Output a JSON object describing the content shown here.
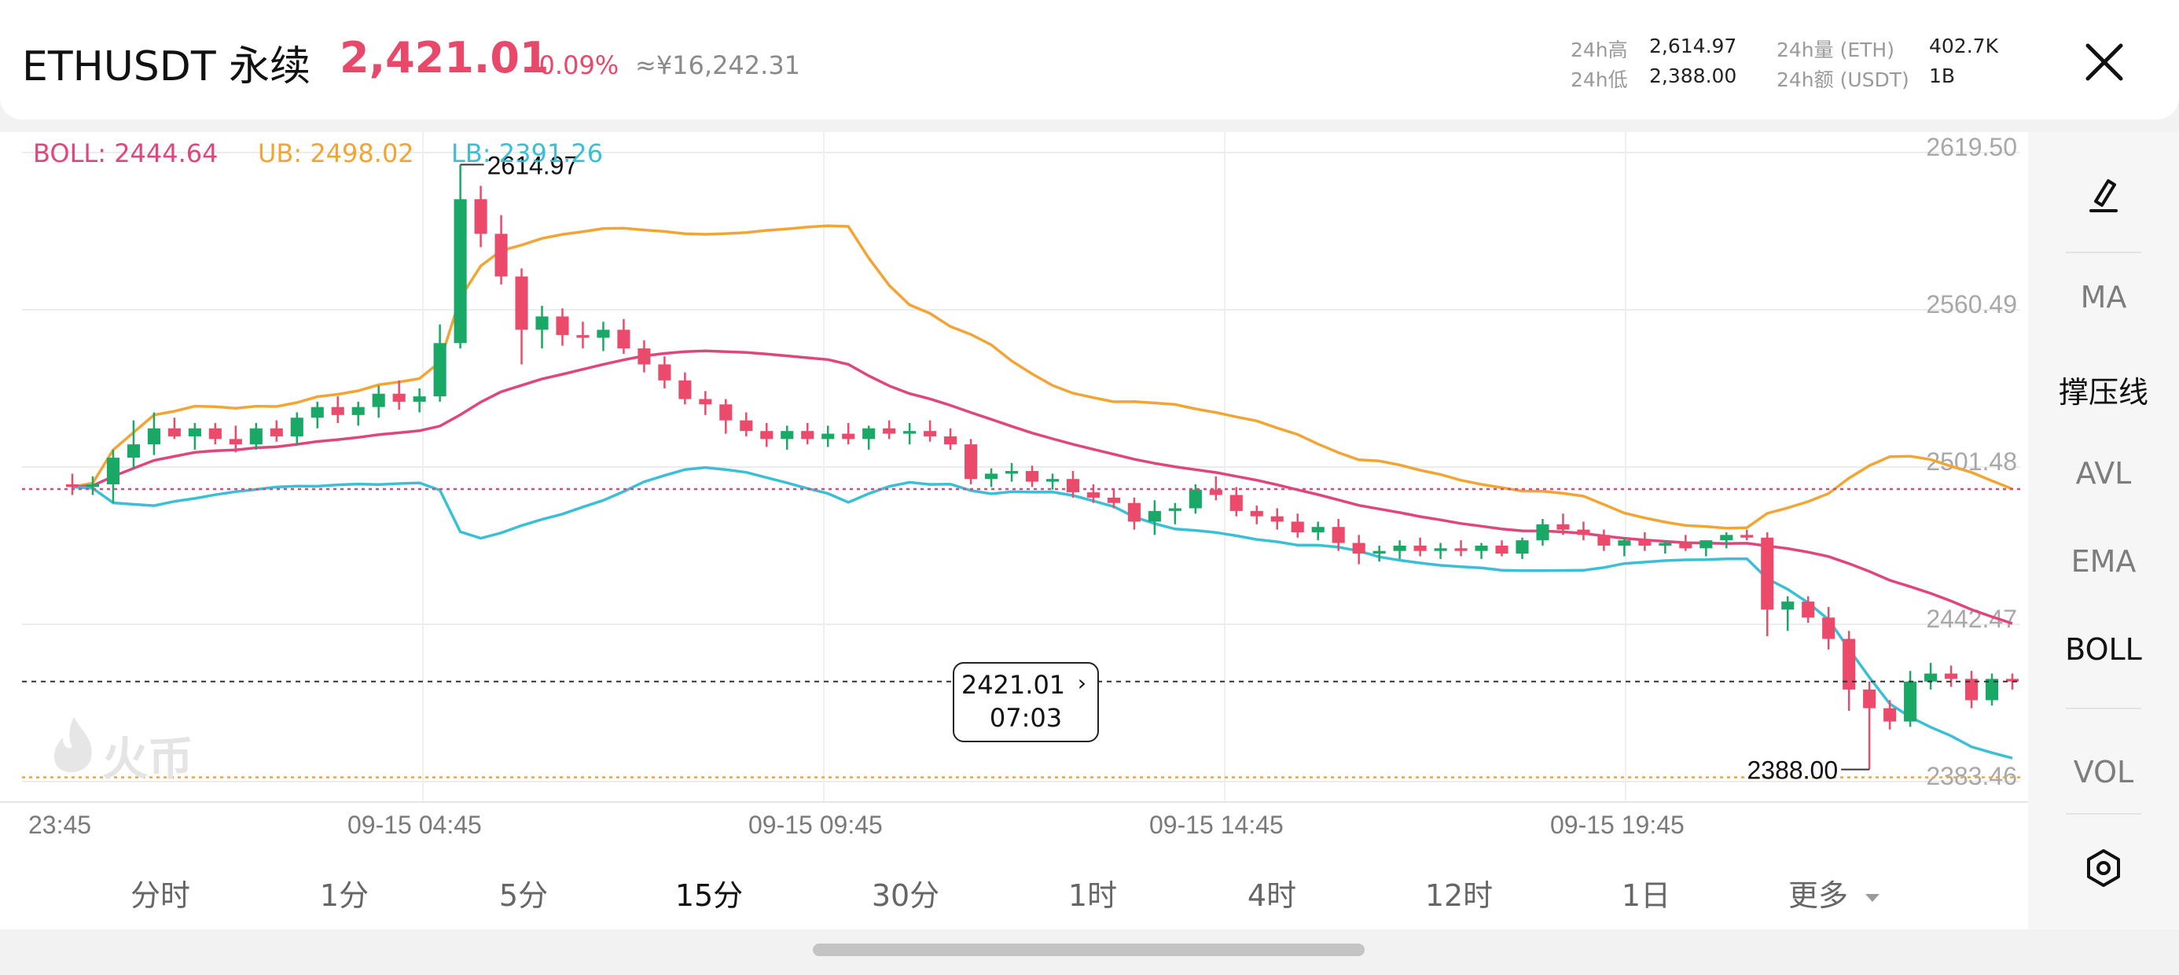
{
  "header": {
    "pair": "ETHUSDT 永续",
    "price": "2,421.01",
    "change": "-0.09%",
    "cny": "≈¥16,242.31",
    "stats": {
      "high_label": "24h高",
      "high_value": "2,614.97",
      "low_label": "24h低",
      "low_value": "2,388.00",
      "vol_label": "24h量 (ETH)",
      "vol_value": "402.7K",
      "amt_label": "24h额 (USDT)",
      "amt_value": "1B"
    }
  },
  "legend": {
    "boll": "BOLL: 2444.64",
    "ub": "UB: 2498.02",
    "lb": "LB: 2391.26"
  },
  "chart": {
    "y_labels": [
      "2619.50",
      "2560.49",
      "2501.48",
      "2442.47",
      "2383.46"
    ],
    "x_labels": [
      "23:45",
      "09-15 04:45",
      "09-15 09:45",
      "09-15 14:45",
      "09-15 19:45"
    ],
    "high_marker": "2614.97",
    "low_marker": "2388.00",
    "tooltip_price": "2421.01",
    "tooltip_time": "07:03",
    "watermark": "火币",
    "colors": {
      "up": "#1aa866",
      "down": "#ec4a6b",
      "boll": "#e0457b",
      "ub": "#f2a534",
      "lb": "#3bbfd6"
    }
  },
  "chart_data": {
    "type": "candlestick",
    "indicator": "BOLL",
    "y_range": [
      2383.46,
      2619.5
    ],
    "x_ticks": [
      "23:45",
      "09-15 04:45",
      "09-15 09:45",
      "09-15 14:45",
      "09-15 19:45"
    ],
    "candles": [
      [
        2495.0,
        2499.0,
        2491.0,
        2494.0
      ],
      [
        2494.0,
        2498.0,
        2491.0,
        2495.0
      ],
      [
        2495.0,
        2508.0,
        2488.0,
        2505.0
      ],
      [
        2505.0,
        2519.0,
        2501.0,
        2510.0
      ],
      [
        2510.0,
        2522.0,
        2506.0,
        2516.0
      ],
      [
        2516.0,
        2520.0,
        2512.0,
        2513.0
      ],
      [
        2513.0,
        2518.0,
        2508.0,
        2516.0
      ],
      [
        2516.0,
        2518.0,
        2510.0,
        2512.0
      ],
      [
        2512.0,
        2517.0,
        2507.0,
        2510.0
      ],
      [
        2510.0,
        2518.0,
        2508.0,
        2516.0
      ],
      [
        2516.0,
        2519.0,
        2511.0,
        2513.0
      ],
      [
        2513.0,
        2522.0,
        2510.0,
        2520.0
      ],
      [
        2520.0,
        2526.0,
        2516.0,
        2524.0
      ],
      [
        2524.0,
        2528.0,
        2518.0,
        2521.0
      ],
      [
        2521.0,
        2526.0,
        2517.0,
        2524.0
      ],
      [
        2524.0,
        2532.0,
        2520.0,
        2529.0
      ],
      [
        2529.0,
        2534.0,
        2523.0,
        2526.0
      ],
      [
        2526.0,
        2531.0,
        2522.0,
        2528.0
      ],
      [
        2528.0,
        2555.0,
        2526.0,
        2548.0
      ],
      [
        2548.0,
        2614.97,
        2546.0,
        2602.0
      ],
      [
        2602.0,
        2607.0,
        2584.0,
        2589.0
      ],
      [
        2589.0,
        2596.0,
        2570.0,
        2573.0
      ],
      [
        2573.0,
        2576.0,
        2540.0,
        2553.0
      ],
      [
        2553.0,
        2562.0,
        2546.0,
        2558.0
      ],
      [
        2558.0,
        2561.0,
        2547.0,
        2551.0
      ],
      [
        2551.0,
        2556.0,
        2546.0,
        2550.0
      ],
      [
        2550.0,
        2556.0,
        2545.0,
        2553.0
      ],
      [
        2553.0,
        2557.0,
        2544.0,
        2546.0
      ],
      [
        2546.0,
        2549.0,
        2537.0,
        2540.0
      ],
      [
        2540.0,
        2543.0,
        2531.0,
        2534.0
      ],
      [
        2534.0,
        2537.0,
        2525.0,
        2527.0
      ],
      [
        2527.0,
        2530.0,
        2521.0,
        2525.0
      ],
      [
        2525.0,
        2527.0,
        2514.0,
        2519.0
      ],
      [
        2519.0,
        2522.0,
        2513.0,
        2515.0
      ],
      [
        2515.0,
        2518.0,
        2509.0,
        2512.0
      ],
      [
        2512.0,
        2517.0,
        2508.0,
        2515.0
      ],
      [
        2515.0,
        2518.0,
        2510.0,
        2512.0
      ],
      [
        2512.0,
        2517.0,
        2509.0,
        2514.0
      ],
      [
        2514.0,
        2518.0,
        2510.0,
        2512.0
      ],
      [
        2512.0,
        2517.0,
        2508.0,
        2516.0
      ],
      [
        2516.0,
        2519.0,
        2512.0,
        2514.0
      ],
      [
        2514.0,
        2518.0,
        2510.0,
        2515.0
      ],
      [
        2515.0,
        2519.0,
        2511.0,
        2513.0
      ],
      [
        2513.0,
        2516.0,
        2508.0,
        2510.0
      ],
      [
        2510.0,
        2512.0,
        2495.0,
        2497.0
      ],
      [
        2497.0,
        2501.0,
        2494.0,
        2499.0
      ],
      [
        2499.0,
        2503.0,
        2496.0,
        2500.0
      ],
      [
        2500.0,
        2502.0,
        2494.0,
        2496.0
      ],
      [
        2496.0,
        2499.0,
        2493.0,
        2497.0
      ],
      [
        2497.0,
        2500.0,
        2490.0,
        2492.0
      ],
      [
        2492.0,
        2495.0,
        2488.0,
        2490.0
      ],
      [
        2490.0,
        2493.0,
        2486.0,
        2488.0
      ],
      [
        2488.0,
        2490.0,
        2478.0,
        2481.0
      ],
      [
        2481.0,
        2489.0,
        2476.0,
        2485.0
      ],
      [
        2485.0,
        2488.0,
        2480.0,
        2486.0
      ],
      [
        2486.0,
        2495.0,
        2484.0,
        2493.0
      ],
      [
        2493.0,
        2498.0,
        2489.0,
        2491.0
      ],
      [
        2491.0,
        2494.0,
        2483.0,
        2485.0
      ],
      [
        2485.0,
        2487.0,
        2480.0,
        2483.0
      ],
      [
        2483.0,
        2486.0,
        2478.0,
        2481.0
      ],
      [
        2481.0,
        2484.0,
        2475.0,
        2477.0
      ],
      [
        2477.0,
        2481.0,
        2474.0,
        2479.0
      ],
      [
        2479.0,
        2482.0,
        2470.0,
        2473.0
      ],
      [
        2473.0,
        2476.0,
        2465.0,
        2469.0
      ],
      [
        2469.0,
        2472.0,
        2466.0,
        2470.0
      ],
      [
        2470.0,
        2474.0,
        2467.0,
        2472.0
      ],
      [
        2472.0,
        2475.0,
        2468.0,
        2470.0
      ],
      [
        2470.0,
        2473.0,
        2467.0,
        2471.0
      ],
      [
        2471.0,
        2474.0,
        2468.0,
        2470.0
      ],
      [
        2470.0,
        2473.0,
        2467.0,
        2472.0
      ],
      [
        2472.0,
        2474.0,
        2468.0,
        2469.0
      ],
      [
        2469.0,
        2475.0,
        2467.0,
        2474.0
      ],
      [
        2474.0,
        2482.0,
        2472.0,
        2480.0
      ],
      [
        2480.0,
        2484.0,
        2476.0,
        2478.0
      ],
      [
        2478.0,
        2481.0,
        2474.0,
        2476.0
      ],
      [
        2476.0,
        2478.0,
        2470.0,
        2472.0
      ],
      [
        2472.0,
        2475.0,
        2468.0,
        2474.0
      ],
      [
        2474.0,
        2477.0,
        2470.0,
        2472.0
      ],
      [
        2472.0,
        2474.0,
        2469.0,
        2473.0
      ],
      [
        2473.0,
        2476.0,
        2470.0,
        2471.0
      ],
      [
        2471.0,
        2474.0,
        2468.0,
        2474.0
      ],
      [
        2474.0,
        2477.0,
        2471.0,
        2476.0
      ],
      [
        2476.0,
        2478.0,
        2474.0,
        2475.0
      ],
      [
        2475.0,
        2477.0,
        2438.0,
        2448.0
      ],
      [
        2448.0,
        2453.0,
        2440.0,
        2451.0
      ],
      [
        2451.0,
        2453.0,
        2443.0,
        2445.0
      ],
      [
        2445.0,
        2449.0,
        2433.0,
        2437.0
      ],
      [
        2437.0,
        2440.0,
        2410.0,
        2418.0
      ],
      [
        2418.0,
        2421.0,
        2388.0,
        2411.0
      ],
      [
        2411.0,
        2414.0,
        2403.0,
        2406.0
      ],
      [
        2406.0,
        2425.0,
        2404.0,
        2421.0
      ],
      [
        2421.0,
        2428.0,
        2418.0,
        2424.0
      ],
      [
        2424.0,
        2427.0,
        2419.0,
        2422.0
      ],
      [
        2422.0,
        2425.0,
        2411.0,
        2414.0
      ],
      [
        2414.0,
        2424.0,
        2412.0,
        2422.0
      ],
      [
        2422.0,
        2424.0,
        2418.0,
        2421.01
      ]
    ]
  },
  "sidebar": {
    "items": [
      "MA",
      "撑压线",
      "AVL",
      "EMA",
      "BOLL",
      "VOL"
    ]
  },
  "tabs": [
    "分时",
    "1分",
    "5分",
    "15分",
    "30分",
    "1时",
    "4时",
    "12时",
    "1日",
    "更多"
  ]
}
